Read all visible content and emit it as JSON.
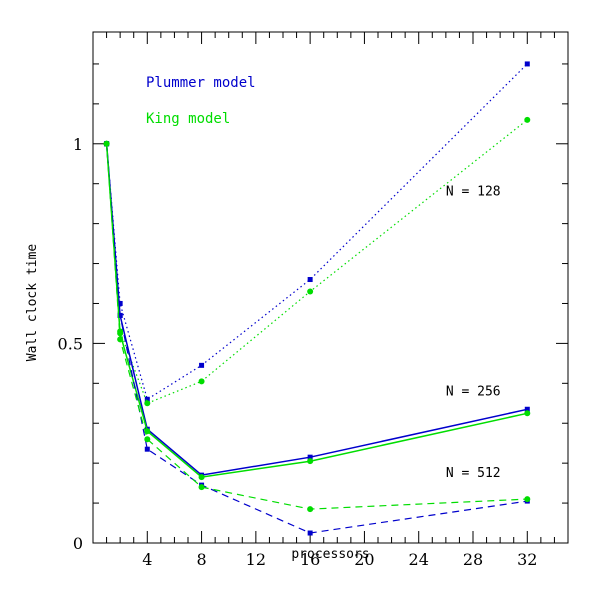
{
  "chart_data": {
    "type": "line",
    "xlabel": "processors",
    "ylabel": "Wall clock time",
    "xlim": [
      0,
      35
    ],
    "ylim": [
      0,
      1.28
    ],
    "x_ticks": [
      4,
      8,
      12,
      16,
      20,
      24,
      28,
      32
    ],
    "y_ticks": [
      0,
      0.5,
      1
    ],
    "x_tick_labels": [
      "4",
      "8",
      "12",
      "16",
      "20",
      "24",
      "28",
      "32"
    ],
    "y_tick_labels": [
      "0",
      "0.5",
      "1"
    ],
    "grid": false,
    "legend": {
      "placement": "top-left",
      "entries": [
        {
          "label": "Plummer model",
          "color": "#0000cc"
        },
        {
          "label": "King model",
          "color": "#00dd00"
        }
      ]
    },
    "annotations": [
      {
        "text": "N = 128",
        "x": 26,
        "y": 0.87
      },
      {
        "text": "N = 256",
        "x": 26,
        "y": 0.37
      },
      {
        "text": "N = 512",
        "x": 26,
        "y": 0.165
      }
    ],
    "series": [
      {
        "model": "plummer",
        "group": "N = 128",
        "style": "dotted",
        "marker": "square",
        "color": "#0000cc",
        "x": [
          1,
          2,
          4,
          8,
          16,
          32
        ],
        "y": [
          1.0,
          0.6,
          0.36,
          0.445,
          0.66,
          1.2
        ]
      },
      {
        "model": "king",
        "group": "N = 128",
        "style": "dotted",
        "marker": "circle",
        "color": "#00dd00",
        "x": [
          1,
          2,
          4,
          8,
          16,
          32
        ],
        "y": [
          1.0,
          0.53,
          0.35,
          0.405,
          0.63,
          1.06
        ]
      },
      {
        "model": "plummer",
        "group": "N = 256",
        "style": "solid",
        "marker": "square",
        "color": "#0000cc",
        "x": [
          1,
          2,
          4,
          8,
          16,
          32
        ],
        "y": [
          1.0,
          0.57,
          0.285,
          0.17,
          0.215,
          0.335
        ]
      },
      {
        "model": "king",
        "group": "N = 256",
        "style": "solid",
        "marker": "circle",
        "color": "#00dd00",
        "x": [
          1,
          2,
          4,
          8,
          16,
          32
        ],
        "y": [
          1.0,
          0.525,
          0.28,
          0.165,
          0.205,
          0.325
        ]
      },
      {
        "model": "plummer",
        "group": "N = 512",
        "style": "dashed",
        "marker": "square",
        "color": "#0000cc",
        "x": [
          1,
          2,
          4,
          8,
          16,
          32
        ],
        "y": [
          1.0,
          0.57,
          0.235,
          0.145,
          0.025,
          0.105
        ]
      },
      {
        "model": "king",
        "group": "N = 512",
        "style": "dashed",
        "marker": "circle",
        "color": "#00dd00",
        "x": [
          1,
          2,
          4,
          8,
          16,
          32
        ],
        "y": [
          1.0,
          0.51,
          0.26,
          0.14,
          0.085,
          0.11
        ]
      }
    ]
  }
}
